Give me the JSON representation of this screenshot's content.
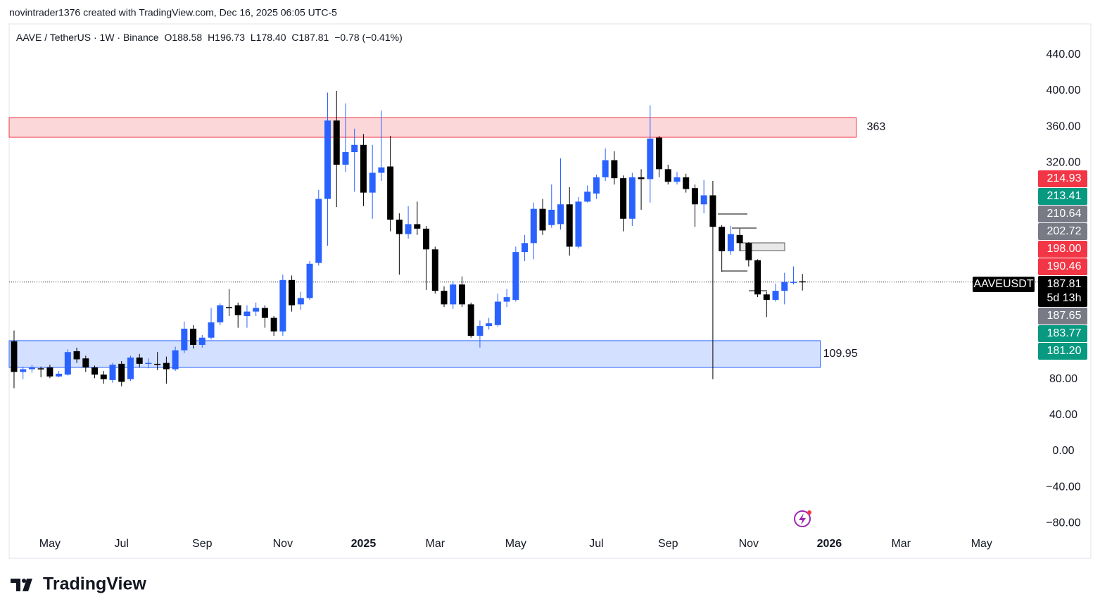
{
  "header": {
    "credit": "novintrader1376 created with TradingView.com, Dec 16, 2025 06:05 UTC-5",
    "symbol": "AAVE / TetherUS · 1W · Binance",
    "ohlc": [
      "O188.58",
      "H196.73",
      "L178.40",
      "C187.81",
      "−0.78 (−0.41%)"
    ]
  },
  "footer": {
    "brand": "TradingView"
  },
  "chart_data": {
    "type": "candlestick",
    "categories": [
      null,
      null,
      null,
      null,
      "May",
      null,
      null,
      null,
      null,
      null,
      null,
      null,
      "Jul",
      null,
      null,
      null,
      null,
      null,
      null,
      null,
      null,
      "Sep",
      null,
      null,
      null,
      null,
      null,
      null,
      null,
      null,
      "Nov",
      null,
      null,
      null,
      null,
      null,
      null,
      null,
      null,
      "2025",
      null,
      null,
      null,
      null,
      null,
      null,
      null,
      "Mar",
      null,
      null,
      null,
      null,
      null,
      null,
      null,
      null,
      "May",
      null,
      null,
      null,
      null,
      null,
      null,
      null,
      null,
      "Jul",
      null,
      null,
      null,
      null,
      null,
      null,
      null,
      "Sep",
      null,
      null,
      null,
      null,
      null,
      null,
      null,
      null,
      "Nov",
      null,
      null,
      null,
      null,
      null,
      null,
      null,
      null,
      "2026",
      null,
      null,
      null,
      null,
      null,
      null,
      null,
      "Mar",
      null,
      null,
      null,
      null,
      null,
      null,
      null,
      null,
      "May",
      null,
      null,
      null,
      null,
      null
    ],
    "open": [
      122,
      88,
      91,
      92,
      93,
      83,
      85,
      111,
      103,
      93,
      85,
      79,
      97,
      80,
      104,
      97,
      97,
      98,
      91,
      112,
      136,
      118,
      126,
      143,
      160,
      162,
      150,
      155,
      159,
      148,
      133,
      190,
      163,
      170,
      209,
      280,
      367,
      318,
      332,
      340,
      287,
      309,
      316,
      257,
      241,
      252,
      247,
      224,
      178,
      163,
      185,
      163,
      128,
      139,
      140,
      166,
      168,
      221,
      231,
      269,
      251,
      252,
      274,
      227,
      277,
      286,
      304,
      323,
      303,
      258,
      304,
      302,
      348,
      313,
      299,
      304,
      292,
      274,
      284,
      249,
      222,
      240,
      231,
      212,
      174,
      168,
      178,
      187,
      188.58,
      null,
      null,
      null,
      null,
      null,
      null,
      null,
      null,
      null,
      null,
      null,
      null,
      null,
      null,
      null,
      null,
      null,
      null,
      null,
      null,
      null,
      null,
      null,
      null,
      null
    ],
    "high": [
      134,
      94,
      96,
      94,
      96,
      89,
      113,
      115,
      106,
      95,
      89,
      98,
      100,
      106,
      108,
      103,
      110,
      105,
      116,
      144,
      140,
      129,
      159,
      164,
      180,
      165,
      162,
      165,
      162,
      150,
      196,
      195,
      177,
      211,
      290,
      398,
      400,
      386,
      358,
      352,
      340,
      378,
      350,
      264,
      272,
      277,
      250,
      227,
      183,
      189,
      194,
      165,
      145,
      148,
      175,
      180,
      227,
      240,
      276,
      280,
      296,
      325,
      293,
      282,
      295,
      307,
      336,
      333,
      306,
      309,
      313,
      384,
      350,
      318,
      310,
      308,
      296,
      301,
      300,
      251,
      250,
      247,
      232,
      213,
      177,
      186,
      198,
      205,
      196.73,
      null,
      null,
      null,
      null,
      null,
      null,
      null,
      null,
      null,
      null,
      null,
      null,
      null,
      null,
      null,
      null,
      null,
      null,
      null,
      null,
      null,
      null,
      null,
      null,
      null
    ],
    "low": [
      70,
      80,
      87,
      82,
      81,
      82,
      84,
      98,
      88,
      81,
      75,
      76,
      72,
      78,
      93,
      92,
      90,
      75,
      89,
      109,
      114,
      115,
      124,
      140,
      150,
      137,
      137,
      150,
      137,
      128,
      128,
      155,
      157,
      168,
      206,
      228,
      271,
      310,
      288,
      272,
      258,
      300,
      244,
      196,
      236,
      240,
      179,
      175,
      160,
      158,
      160,
      126,
      115,
      135,
      138,
      160,
      166,
      211,
      213,
      240,
      248,
      246,
      217,
      225,
      276,
      280,
      300,
      296,
      244,
      250,
      268,
      276,
      304,
      296,
      296,
      287,
      249,
      264,
      80,
      199,
      218,
      222,
      205,
      171,
      149,
      166,
      163,
      185,
      178.4,
      null,
      null,
      null,
      null,
      null,
      null,
      null,
      null,
      null,
      null,
      null,
      null,
      null,
      null,
      null,
      null,
      null,
      null,
      null,
      null,
      null,
      null,
      null,
      null,
      null
    ],
    "close": [
      88,
      91,
      93,
      91,
      83,
      86,
      110,
      102,
      93,
      85,
      80,
      96,
      77,
      104,
      97,
      98,
      96,
      91,
      112,
      136,
      118,
      126,
      143,
      162,
      159,
      151,
      155,
      159,
      148,
      133,
      190,
      162,
      170,
      208,
      280,
      367,
      318,
      332,
      340,
      287,
      309,
      315,
      257,
      241,
      252,
      247,
      224,
      178,
      163,
      185,
      163,
      128,
      139,
      142,
      166,
      171,
      221,
      231,
      269,
      245,
      268,
      274,
      227,
      277,
      288,
      304,
      323,
      303,
      258,
      304,
      302,
      347,
      313,
      299,
      304,
      291,
      274,
      284,
      249,
      222,
      241,
      231,
      212,
      174,
      168,
      178,
      188,
      188,
      187.81,
      null,
      null,
      null,
      null,
      null,
      null,
      null,
      null,
      null,
      null,
      null,
      null,
      null,
      null,
      null,
      null,
      null,
      null,
      null,
      null,
      null,
      null,
      null,
      null,
      null
    ],
    "up_color": "#2962ff",
    "down_color": "#000000",
    "ylim": [
      -90.6,
      474.2
    ],
    "yticks": [
      {
        "value": 440,
        "label": "440.00"
      },
      {
        "value": 400,
        "label": "400.00"
      },
      {
        "value": 360,
        "label": "360.00"
      },
      {
        "value": 320,
        "label": "320.00"
      },
      {
        "value": 80,
        "label": "80.00"
      },
      {
        "value": 40,
        "label": "40.00"
      },
      {
        "value": 0,
        "label": "0.00"
      },
      {
        "value": -40,
        "label": "−40.00"
      },
      {
        "value": -80,
        "label": "−80.00"
      }
    ],
    "zones": [
      {
        "label": "363",
        "top": 370.3,
        "bottom": 348.4,
        "end": 94,
        "color": "#f23645"
      },
      {
        "label": "109.95",
        "top": 122.7,
        "bottom": 93,
        "end": 90,
        "color": "#2962ff"
      }
    ],
    "price_labels": [
      {
        "value": 214.93,
        "label": "214.93",
        "color": "#f23645"
      },
      {
        "value": 213.41,
        "label": "213.41",
        "color": "#089981"
      },
      {
        "value": 210.64,
        "label": "210.64",
        "color": "#787b86"
      },
      {
        "value": 202.72,
        "label": "202.72",
        "color": "#787b86"
      },
      {
        "value": 198,
        "label": "198.00",
        "color": "#f23645"
      },
      {
        "value": 190.46,
        "label": "190.46",
        "color": "#f23645"
      },
      {
        "value": 187.81,
        "label": "187.81",
        "color": "#000000",
        "symbol": "AAVEUSDT",
        "countdown": "5d 13h"
      },
      {
        "value": 187.65,
        "label": "187.65",
        "color": "#787b86"
      },
      {
        "value": 183.77,
        "label": "183.77",
        "color": "#089981"
      },
      {
        "value": 181.2,
        "label": "181.20",
        "color": "#089981"
      }
    ]
  }
}
